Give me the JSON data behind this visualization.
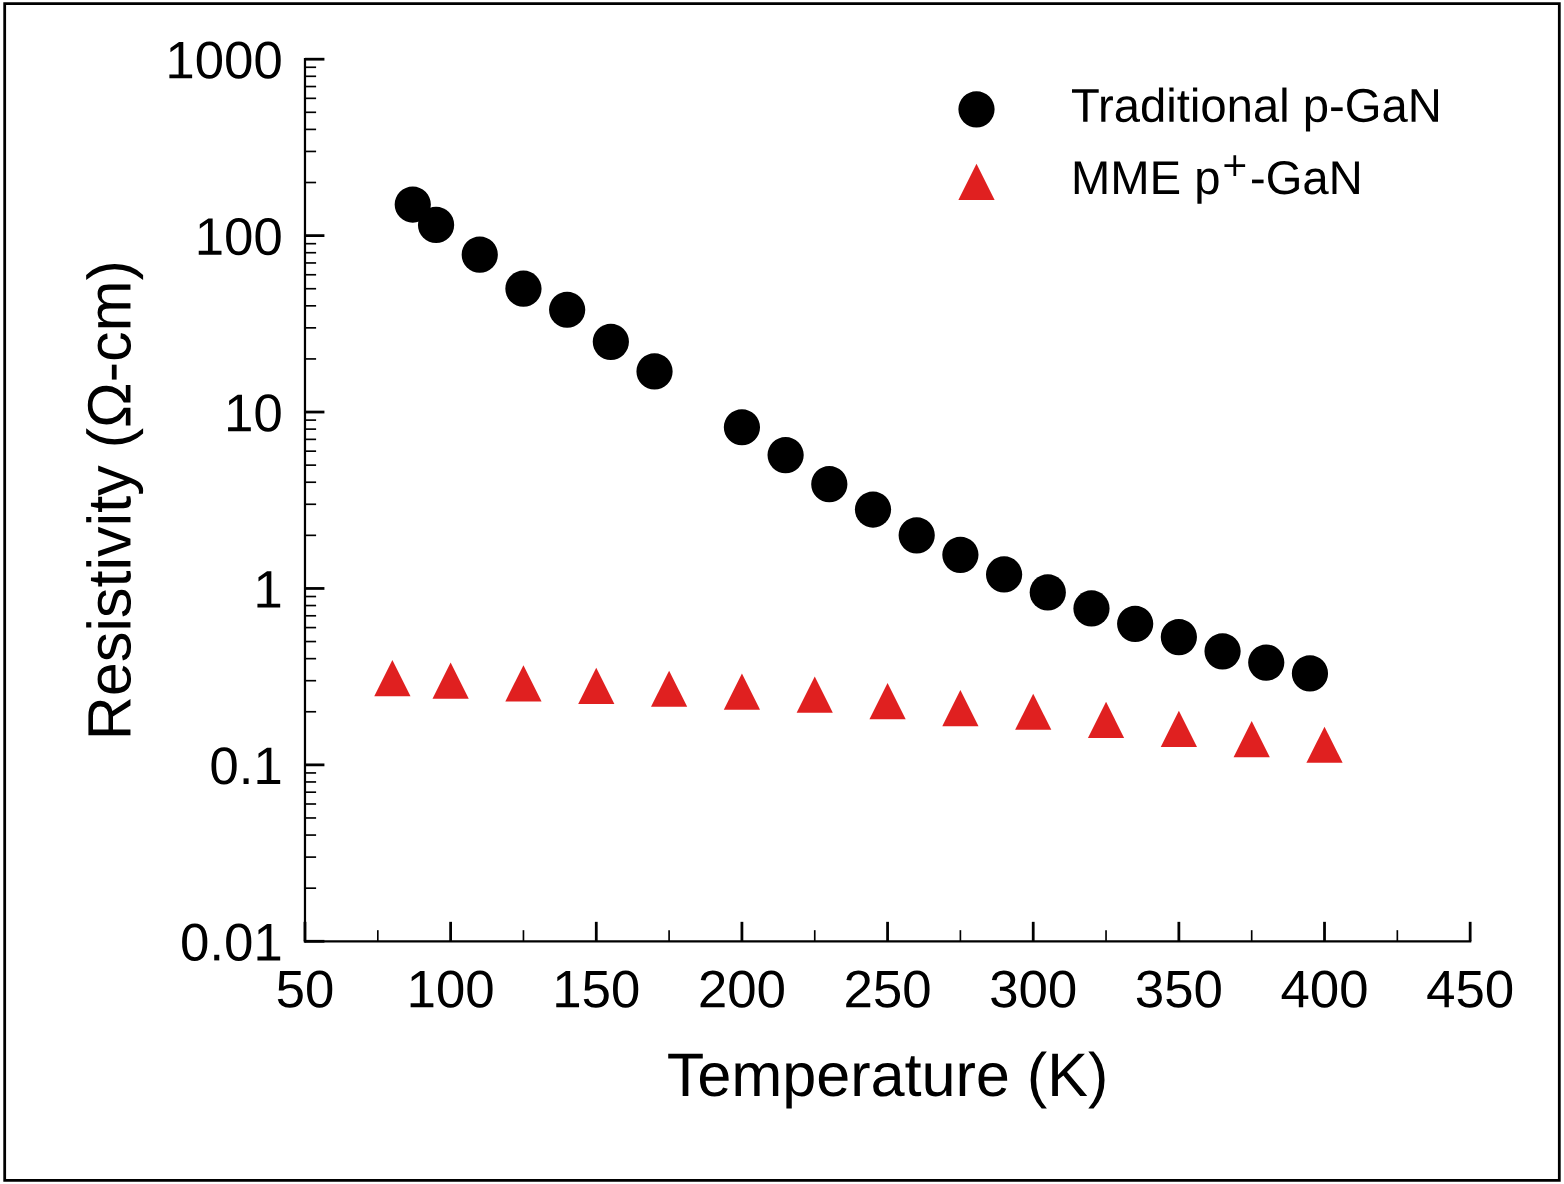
{
  "chart_data": {
    "type": "scatter",
    "xlabel": "Temperature (K)",
    "ylabel": "Resistivity (Ω-cm)",
    "log": "y",
    "xlim": [
      50,
      450
    ],
    "xticks": [
      50,
      100,
      150,
      200,
      250,
      300,
      350,
      400,
      450
    ],
    "ylim": [
      0.01,
      1000
    ],
    "yticks": [
      {
        "value": 0.01,
        "label": "0.01"
      },
      {
        "value": 0.1,
        "label": "0.1"
      },
      {
        "value": 1,
        "label": "1"
      },
      {
        "value": 10,
        "label": "10"
      },
      {
        "value": 100,
        "label": "100"
      },
      {
        "value": 1000,
        "label": "1000"
      }
    ],
    "grid": false,
    "legend": "top right",
    "series": [
      {
        "name": "Traditional p-GaN",
        "color": "#000000",
        "marker": "circle",
        "x": [
          87,
          95,
          110,
          125,
          140,
          155,
          170,
          200,
          215,
          230,
          245,
          260,
          275,
          290,
          305,
          320,
          335,
          350,
          365,
          380,
          395
        ],
        "values": [
          150,
          115,
          78,
          50,
          38,
          25,
          17,
          8.2,
          5.7,
          3.9,
          2.8,
          2.0,
          1.55,
          1.2,
          0.95,
          0.77,
          0.63,
          0.53,
          0.44,
          0.38,
          0.33
        ]
      },
      {
        "name": "MME p$^{+}$-GaN",
        "color": "#e02020",
        "marker": "triangle",
        "x": [
          80,
          100,
          125,
          150,
          175,
          200,
          225,
          250,
          275,
          300,
          325,
          350,
          375,
          400
        ],
        "values": [
          0.31,
          0.3,
          0.29,
          0.28,
          0.27,
          0.26,
          0.25,
          0.23,
          0.21,
          0.2,
          0.18,
          0.16,
          0.14,
          0.13
        ]
      }
    ]
  }
}
